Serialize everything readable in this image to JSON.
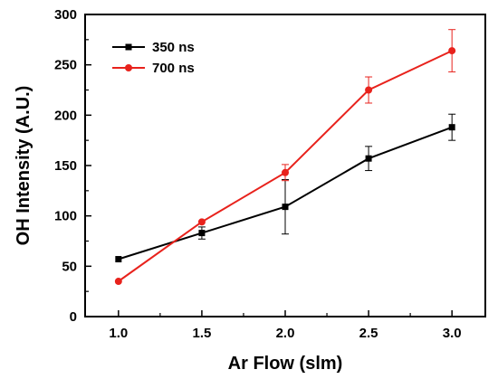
{
  "chart_data": {
    "type": "line",
    "title": "",
    "xlabel": "Ar Flow (slm)",
    "ylabel": "OH Intensity (A.U.)",
    "xlim": [
      0.8,
      3.2
    ],
    "ylim": [
      0,
      300
    ],
    "xticks": [
      "1.0",
      "1.5",
      "2.0",
      "2.5",
      "3.0"
    ],
    "xtick_values": [
      1.0,
      1.5,
      2.0,
      2.5,
      3.0
    ],
    "yticks": [
      "0",
      "50",
      "100",
      "150",
      "200",
      "250",
      "300"
    ],
    "ytick_values": [
      0,
      50,
      100,
      150,
      200,
      250,
      300
    ],
    "grid": false,
    "legend_position": "top-left",
    "series": [
      {
        "name": "350 ns",
        "color": "#000000",
        "marker": "square",
        "x": [
          1.0,
          1.5,
          2.0,
          2.5,
          3.0
        ],
        "y": [
          57,
          83,
          109,
          157,
          188
        ],
        "error": [
          0,
          6,
          27,
          12,
          13
        ]
      },
      {
        "name": "700 ns",
        "color": "#e8221c",
        "marker": "circle",
        "x": [
          1.0,
          1.5,
          2.0,
          2.5,
          3.0
        ],
        "y": [
          35,
          94,
          143,
          225,
          264
        ],
        "error": [
          0,
          0,
          8,
          13,
          21
        ]
      }
    ]
  }
}
